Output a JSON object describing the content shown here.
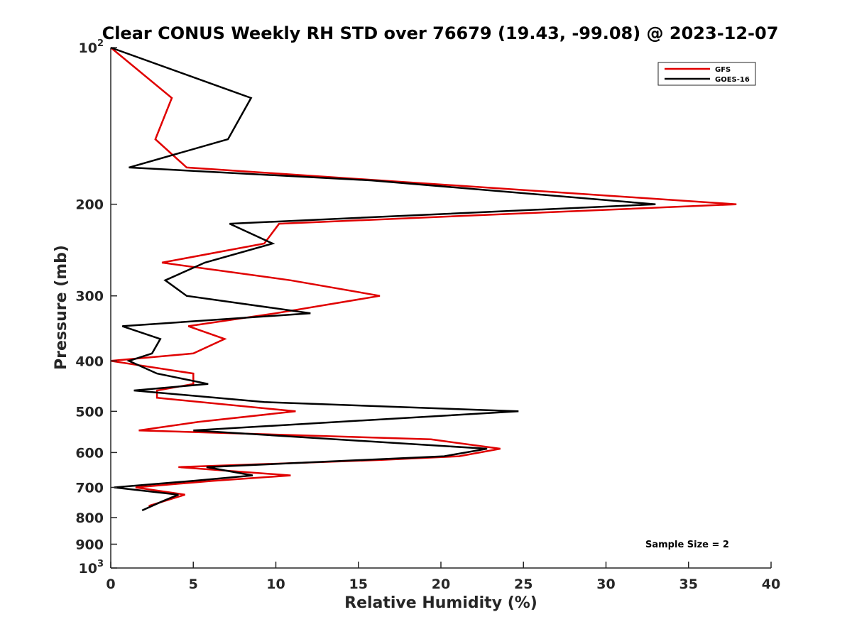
{
  "chart_data": {
    "type": "line",
    "title": "Clear CONUS Weekly RH STD over 76679 (19.43, -99.08) @ 2023-12-07",
    "xlabel": "Relative Humidity (%)",
    "ylabel": "Pressure (mb)",
    "xlim": [
      0,
      40
    ],
    "ylim": [
      100,
      1000
    ],
    "y_scale": "log",
    "y_reversed": true,
    "x_ticks": [
      "0",
      "5",
      "10",
      "15",
      "20",
      "25",
      "30",
      "35",
      "40"
    ],
    "x_tick_values": [
      0,
      5,
      10,
      15,
      20,
      25,
      30,
      35,
      40
    ],
    "y_ticks": [
      {
        "value": 100,
        "base": "10",
        "exp": "2"
      },
      {
        "value": 200,
        "base": "200",
        "exp": ""
      },
      {
        "value": 300,
        "base": "300",
        "exp": ""
      },
      {
        "value": 400,
        "base": "400",
        "exp": ""
      },
      {
        "value": 500,
        "base": "500",
        "exp": ""
      },
      {
        "value": 600,
        "base": "600",
        "exp": ""
      },
      {
        "value": 700,
        "base": "700",
        "exp": ""
      },
      {
        "value": 800,
        "base": "800",
        "exp": ""
      },
      {
        "value": 900,
        "base": "900",
        "exp": ""
      },
      {
        "value": 1000,
        "base": "10",
        "exp": "3"
      }
    ],
    "grid": false,
    "legend_position": "top-right",
    "annotation": "Sample Size = 2",
    "series": [
      {
        "name": "GFS",
        "color": "#e00000",
        "points": [
          [
            0.0,
            100
          ],
          [
            3.7,
            125
          ],
          [
            2.7,
            150
          ],
          [
            4.6,
            170
          ],
          [
            37.9,
            200
          ],
          [
            10.2,
            218
          ],
          [
            9.3,
            238
          ],
          [
            3.1,
            259
          ],
          [
            10.9,
            280
          ],
          [
            16.3,
            300
          ],
          [
            10.0,
            324
          ],
          [
            4.7,
            343
          ],
          [
            6.9,
            363
          ],
          [
            5.0,
            387
          ],
          [
            0.0,
            400
          ],
          [
            5.0,
            423
          ],
          [
            5.0,
            443
          ],
          [
            2.8,
            456
          ],
          [
            2.8,
            471
          ],
          [
            11.2,
            500
          ],
          [
            5.3,
            524
          ],
          [
            1.7,
            544
          ],
          [
            19.4,
            566
          ],
          [
            23.6,
            590
          ],
          [
            21.1,
            610
          ],
          [
            16.4,
            620
          ],
          [
            4.1,
            640
          ],
          [
            10.9,
            664
          ],
          [
            6.2,
            680
          ],
          [
            1.5,
            700
          ],
          [
            4.5,
            723
          ],
          [
            2.3,
            760
          ]
        ]
      },
      {
        "name": "GOES-16",
        "color": "#000000",
        "points": [
          [
            0.0,
            100
          ],
          [
            8.5,
            125
          ],
          [
            7.1,
            150
          ],
          [
            1.1,
            170
          ],
          [
            15.8,
            180
          ],
          [
            33.0,
            200
          ],
          [
            7.2,
            218
          ],
          [
            9.8,
            238
          ],
          [
            5.7,
            259
          ],
          [
            3.3,
            280
          ],
          [
            4.6,
            300
          ],
          [
            12.1,
            324
          ],
          [
            0.7,
            343
          ],
          [
            3.0,
            363
          ],
          [
            2.5,
            387
          ],
          [
            1.1,
            400
          ],
          [
            2.8,
            423
          ],
          [
            5.9,
            443
          ],
          [
            1.4,
            456
          ],
          [
            9.3,
            480
          ],
          [
            24.7,
            500
          ],
          [
            5.0,
            544
          ],
          [
            22.8,
            590
          ],
          [
            20.2,
            610
          ],
          [
            5.8,
            640
          ],
          [
            8.6,
            664
          ],
          [
            5.0,
            680
          ],
          [
            0.2,
            700
          ],
          [
            4.1,
            723
          ],
          [
            3.1,
            745
          ],
          [
            1.9,
            775
          ]
        ]
      }
    ]
  }
}
